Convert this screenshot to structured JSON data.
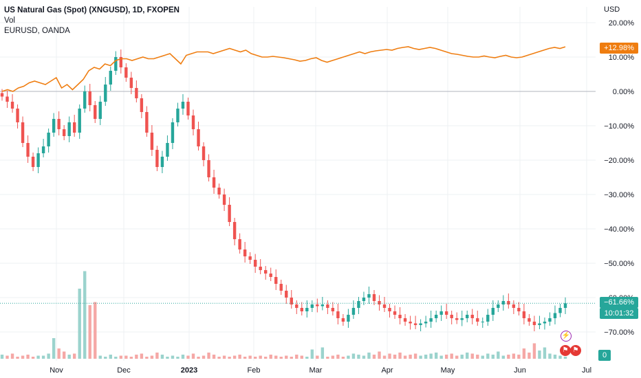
{
  "legend": {
    "title": "US Natural Gas (Spot) (XNGUSD), 1D, FXOPEN",
    "vol": "Vol",
    "compare": "EURUSD, OANDA"
  },
  "chart_data": {
    "type": "candlestick",
    "y_unit_label": "USD",
    "y_ticks": [
      "20.00%",
      "10.00%",
      "0.00%",
      "−10.00%",
      "−20.00%",
      "−30.00%",
      "−40.00%",
      "−50.00%",
      "−60.00%",
      "−70.00%"
    ],
    "y_tick_values": [
      20,
      10,
      0,
      -10,
      -20,
      -30,
      -40,
      -50,
      -60,
      -70
    ],
    "ylim": [
      -78,
      25
    ],
    "x_ticks": [
      "Nov",
      "Dec",
      "2023",
      "Feb",
      "Mar",
      "Apr",
      "May",
      "Jun",
      "Jul"
    ],
    "x_tick_bold": [
      false,
      false,
      true,
      false,
      false,
      false,
      false,
      false,
      false
    ],
    "series": [
      {
        "name": "US Natural Gas (Spot) (XNGUSD), 1D, FXOPEN",
        "color_up": "#26a69a",
        "color_down": "#ef5350",
        "last_label": "−61.66%",
        "countdown": "10:01:32",
        "closes": [
          -1.5,
          -3,
          -5,
          -9,
          -15,
          -19,
          -22,
          -18,
          -16,
          -12,
          -8,
          -11,
          -13,
          -9,
          -12,
          -5,
          0,
          -4,
          -8,
          -3,
          2,
          6,
          10,
          7,
          4,
          1,
          -2,
          -6,
          -12,
          -17,
          -22,
          -19,
          -15,
          -9,
          -5,
          -3,
          -7,
          -11,
          -16,
          -20,
          -25,
          -28,
          -30,
          -33,
          -38,
          -43,
          -46,
          -48,
          -49,
          -51,
          -52,
          -53,
          -54,
          -56,
          -58,
          -60,
          -62,
          -63,
          -64,
          -63,
          -62,
          -62.5,
          -62,
          -63,
          -64,
          -66,
          -67,
          -65,
          -63,
          -61,
          -60,
          -59,
          -61,
          -62,
          -63,
          -64,
          -65,
          -66,
          -67,
          -67.5,
          -68,
          -67.5,
          -67,
          -66,
          -65,
          -64,
          -65,
          -66,
          -66.5,
          -66,
          -65,
          -66,
          -67,
          -67,
          -65,
          -63,
          -62,
          -61,
          -62,
          -63,
          -64,
          -66,
          -67,
          -68,
          -67.5,
          -67,
          -66,
          -64.5,
          -63,
          -61.66
        ]
      },
      {
        "name": "EURUSD, OANDA",
        "color": "#ef7d10",
        "last_label": "+12.98%",
        "values": [
          0,
          0.5,
          0,
          1,
          1.5,
          2.5,
          3,
          2.5,
          2,
          3,
          4,
          1,
          2,
          0.5,
          2,
          3.5,
          6,
          7,
          6.5,
          8,
          7.5,
          9,
          9.5,
          9.5,
          9,
          9.5,
          10,
          9.5,
          9.5,
          10,
          10.5,
          11,
          9.5,
          8,
          10.5,
          11,
          11.5,
          11.5,
          11.5,
          11,
          11.5,
          12,
          12.5,
          12,
          11.5,
          12,
          11,
          10.5,
          10,
          10,
          10.2,
          10,
          9.8,
          9.5,
          9.2,
          8.8,
          9,
          9.5,
          9.8,
          9,
          8.5,
          9,
          9.5,
          10,
          10.5,
          11,
          11.5,
          11,
          11.5,
          11.8,
          12,
          12.2,
          12,
          12.5,
          12.8,
          13,
          12.5,
          12.2,
          12.5,
          12.8,
          12.5,
          12,
          11.5,
          11,
          10.8,
          10.5,
          10.2,
          10,
          10,
          10.3,
          10,
          9.8,
          10.2,
          10.5,
          10,
          9.8,
          10,
          10.5,
          11,
          11.5,
          12,
          12.5,
          12.8,
          12.5,
          12.98
        ]
      }
    ],
    "volume": {
      "name": "Vol",
      "last_label": "0",
      "values": [
        0.04,
        0.03,
        0.05,
        0.02,
        0.03,
        0.04,
        0.02,
        0.03,
        0.03,
        0.05,
        0.2,
        0.1,
        0.07,
        0.04,
        0.05,
        0.68,
        0.85,
        0.52,
        0.55,
        0.03,
        0.02,
        0.04,
        0.02,
        0.03,
        0.03,
        0.02,
        0.04,
        0.05,
        0.02,
        0.03,
        0.06,
        0.04,
        0.02,
        0.03,
        0.02,
        0.04,
        0.03,
        0.05,
        0.02,
        0.03,
        0.06,
        0.04,
        0.02,
        0.03,
        0.02,
        0.03,
        0.04,
        0.02,
        0.03,
        0.02,
        0.03,
        0.02,
        0.04,
        0.03,
        0.02,
        0.03,
        0.02,
        0.04,
        0.03,
        0.02,
        0.09,
        0.03,
        0.11,
        0.02,
        0.03,
        0.04,
        0.02,
        0.03,
        0.05,
        0.04,
        0.03,
        0.06,
        0.04,
        0.07,
        0.03,
        0.05,
        0.04,
        0.06,
        0.03,
        0.04,
        0.05,
        0.03,
        0.04,
        0.05,
        0.06,
        0.03,
        0.04,
        0.05,
        0.03,
        0.04,
        0.06,
        0.05,
        0.04,
        0.03,
        0.05,
        0.04,
        0.07,
        0.03,
        0.04,
        0.05,
        0.04,
        0.1,
        0.06,
        0.15,
        0.08,
        0.11,
        0.05,
        0.04,
        0.03,
        0.02
      ]
    },
    "reference_line": 0,
    "grid": true
  },
  "colors": {
    "grid": "#eef0f3",
    "zero_line": "#b2b5be",
    "last_price_line": "#26a69a",
    "volume_up": "#9bd3cd",
    "volume_down": "#f5a8a6"
  },
  "icons": {
    "event_bolt": "lightning-icon",
    "event_flags": "us-flag-icon"
  }
}
